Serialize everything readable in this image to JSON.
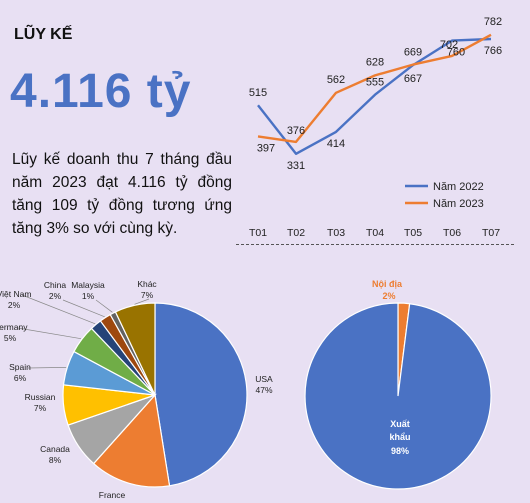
{
  "header": {
    "title": "LŨY KẾ",
    "big_number": "4.116 tỷ",
    "description": "Lũy kế doanh thu 7 tháng đầu năm 2023 đạt 4.116 tỷ đồng tăng 109 tỷ đồng tương ứng tăng 3% so với cùng kỳ."
  },
  "colors": {
    "s2022": "#4a72c4",
    "s2023": "#ed7d31",
    "background": "#e8e0f3"
  },
  "chart_data": [
    {
      "type": "line",
      "categories": [
        "T01",
        "T02",
        "T03",
        "T04",
        "T05",
        "T06",
        "T07"
      ],
      "series": [
        {
          "name": "Năm 2022",
          "values": [
            515,
            331,
            414,
            555,
            667,
            760,
            766
          ]
        },
        {
          "name": "Năm 2023",
          "values": [
            397,
            376,
            562,
            628,
            669,
            702,
            782
          ]
        }
      ],
      "legend": "right"
    },
    {
      "type": "pie",
      "slices": [
        {
          "label": "USA",
          "pct": "47%",
          "value": 47,
          "color": "#4a72c4"
        },
        {
          "label": "France",
          "pct": "",
          "value": 14,
          "color": "#ed7d31"
        },
        {
          "label": "Canada",
          "pct": "8%",
          "value": 8,
          "color": "#a5a5a5"
        },
        {
          "label": "Russian",
          "pct": "7%",
          "value": 7,
          "color": "#ffc000"
        },
        {
          "label": "Spain",
          "pct": "6%",
          "value": 6,
          "color": "#5b9bd5"
        },
        {
          "label": "Germany",
          "pct": "5%",
          "value": 5,
          "color": "#70ad47"
        },
        {
          "label": "Việt Nam",
          "pct": "2%",
          "value": 2,
          "color": "#264478"
        },
        {
          "label": "China",
          "pct": "2%",
          "value": 2,
          "color": "#9e480e"
        },
        {
          "label": "Malaysia",
          "pct": "1%",
          "value": 1,
          "color": "#636363"
        },
        {
          "label": "Khác",
          "pct": "7%",
          "value": 7,
          "color": "#997300"
        }
      ]
    },
    {
      "type": "pie",
      "slices": [
        {
          "label": "Nội địa",
          "pct": "2%",
          "value": 2,
          "color": "#ed7d31"
        },
        {
          "label": "Xuất khẩu",
          "pct": "98%",
          "value": 98,
          "color": "#4a72c4"
        }
      ]
    }
  ]
}
